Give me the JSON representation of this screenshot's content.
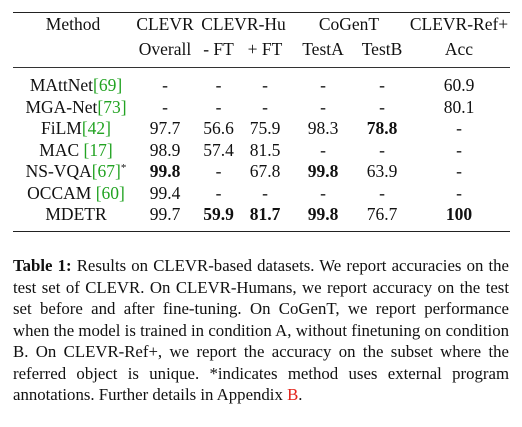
{
  "table": {
    "header_row1": [
      "Method",
      "CLEVR",
      "CLEVR-Hu",
      "CoGenT",
      "CLEVR-Ref+"
    ],
    "header_row2": [
      "Overall",
      "- FT",
      "+ FT",
      "TestA",
      "TestB",
      "Acc"
    ],
    "rows": [
      {
        "method": "MAttNet",
        "cite": "[69]",
        "sup": "",
        "v": [
          "-",
          "-",
          "-",
          "-",
          "-",
          "60.9"
        ],
        "bold": [
          false,
          false,
          false,
          false,
          false,
          false
        ]
      },
      {
        "method": "MGA-Net",
        "cite": "[73]",
        "sup": "",
        "v": [
          "-",
          "-",
          "-",
          "-",
          "-",
          "80.1"
        ],
        "bold": [
          false,
          false,
          false,
          false,
          false,
          false
        ]
      },
      {
        "method": "FiLM",
        "cite": "[42]",
        "sup": "",
        "v": [
          "97.7",
          "56.6",
          "75.9",
          "98.3",
          "78.8",
          "-"
        ],
        "bold": [
          false,
          false,
          false,
          false,
          true,
          false
        ]
      },
      {
        "method": "MAC ",
        "cite": "[17]",
        "sup": "",
        "v": [
          "98.9",
          "57.4",
          "81.5",
          "-",
          "-",
          "-"
        ],
        "bold": [
          false,
          false,
          false,
          false,
          false,
          false
        ]
      },
      {
        "method": "NS-VQA",
        "cite": "[67]",
        "sup": "*",
        "v": [
          "99.8",
          "-",
          "67.8",
          "99.8",
          "63.9",
          "-"
        ],
        "bold": [
          true,
          false,
          false,
          true,
          false,
          false
        ]
      },
      {
        "method": "OCCAM ",
        "cite": "[60]",
        "sup": "",
        "v": [
          "99.4",
          "-",
          "-",
          "-",
          "-",
          "-"
        ],
        "bold": [
          false,
          false,
          false,
          false,
          false,
          false
        ]
      },
      {
        "method": "MDETR",
        "cite": "",
        "sup": "",
        "v": [
          "99.7",
          "59.9",
          "81.7",
          "99.8",
          "76.7",
          "100"
        ],
        "bold": [
          false,
          true,
          true,
          true,
          false,
          true
        ]
      }
    ]
  },
  "caption": {
    "label": "Table 1:",
    "body": " Results on CLEVR-based datasets. We report accuracies on the test set of CLEVR. On CLEVR-Humans, we report accuracy on the test set before and after fine-tuning. On CoGenT, we report performance when the model is trained in condition A, without finetuning on condition B. On CLEVR-Ref+, we report the accuracy on the subset where the referred object is unique. *indicates method uses external program annotations. Further details in Appendix ",
    "ref": "B",
    "end": "."
  },
  "colors": {
    "citation": "#22a322",
    "reference": "#e3231a"
  }
}
